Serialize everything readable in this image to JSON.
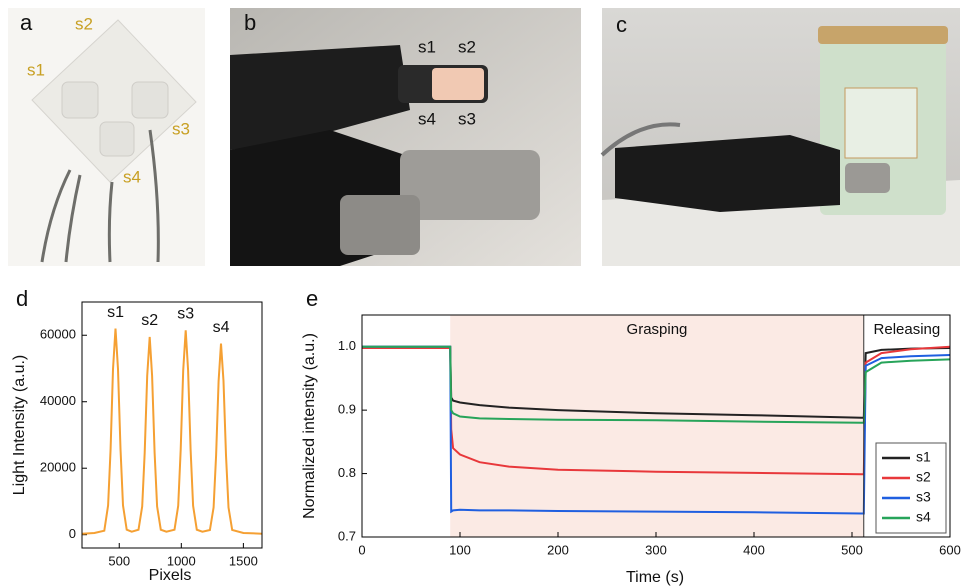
{
  "panels": {
    "a": {
      "label": "a",
      "sensors": [
        "s2",
        "s1",
        "s3",
        "s4"
      ]
    },
    "b": {
      "label": "b",
      "sensors": [
        "s1",
        "s2",
        "s4",
        "s3"
      ]
    },
    "c": {
      "label": "c"
    }
  },
  "chart_data": [
    {
      "type": "line",
      "label": "d",
      "xlabel": "Pixels",
      "ylabel": "Light Intensity (a.u.)",
      "x": [
        200,
        300,
        380,
        410,
        430,
        450,
        470,
        490,
        510,
        530,
        560,
        600,
        655,
        685,
        705,
        725,
        745,
        765,
        785,
        805,
        835,
        880,
        945,
        975,
        995,
        1015,
        1035,
        1055,
        1075,
        1095,
        1125,
        1170,
        1230,
        1260,
        1280,
        1300,
        1320,
        1340,
        1360,
        1380,
        1410,
        1500,
        1650
      ],
      "series": [
        {
          "color": "#f5a033",
          "values": [
            300,
            500,
            1200,
            8800,
            25800,
            49800,
            62000,
            49800,
            25800,
            8800,
            1500,
            900,
            1500,
            8500,
            24700,
            47800,
            59500,
            47800,
            24700,
            8500,
            1500,
            900,
            1500,
            8700,
            25600,
            49400,
            61500,
            49400,
            25600,
            8700,
            1500,
            900,
            1400,
            8200,
            23900,
            46200,
            57500,
            46200,
            23900,
            8200,
            1400,
            500,
            300
          ]
        }
      ],
      "peak_labels": [
        "s1",
        "s2",
        "s3",
        "s4"
      ],
      "xlim": [
        200,
        1650
      ],
      "ylim": [
        -4000,
        70000
      ],
      "xticks": [
        500,
        1000,
        1500
      ],
      "yticks": [
        0,
        20000,
        40000,
        60000
      ]
    },
    {
      "type": "line",
      "label": "e",
      "xlabel": "Time (s)",
      "ylabel": "Normalized intensity (a.u.)",
      "x": [
        0,
        50,
        90,
        91,
        93,
        100,
        120,
        150,
        200,
        300,
        400,
        510,
        512,
        514,
        530,
        560,
        600
      ],
      "spans": [
        {
          "label": "Grasping",
          "x": [
            90,
            512
          ],
          "color": "#fbeae4"
        },
        {
          "label": "Releasing",
          "x": [
            512,
            600
          ],
          "color": "#ffffff"
        }
      ],
      "series": [
        {
          "name": "s1",
          "color": "#222222",
          "values": [
            1.0,
            1.0,
            1.0,
            0.92,
            0.915,
            0.912,
            0.908,
            0.904,
            0.9,
            0.895,
            0.892,
            0.888,
            0.888,
            0.99,
            0.995,
            0.997,
            0.998
          ]
        },
        {
          "name": "s2",
          "color": "#e8383b",
          "values": [
            0.998,
            0.998,
            0.998,
            0.87,
            0.84,
            0.83,
            0.818,
            0.811,
            0.806,
            0.803,
            0.801,
            0.799,
            0.799,
            0.975,
            0.99,
            0.996,
            1.0
          ]
        },
        {
          "name": "s3",
          "color": "#1f5fe0",
          "values": [
            1.0,
            1.0,
            1.0,
            0.74,
            0.742,
            0.743,
            0.742,
            0.742,
            0.741,
            0.74,
            0.739,
            0.737,
            0.737,
            0.97,
            0.982,
            0.985,
            0.987
          ]
        },
        {
          "name": "s4",
          "color": "#27a45a",
          "values": [
            1.0,
            1.0,
            1.0,
            0.9,
            0.895,
            0.89,
            0.887,
            0.886,
            0.885,
            0.884,
            0.882,
            0.88,
            0.88,
            0.96,
            0.975,
            0.978,
            0.98
          ]
        }
      ],
      "legend": "lower right",
      "xlim": [
        0,
        600
      ],
      "ylim": [
        0.7,
        1.05
      ],
      "xticks": [
        0,
        100,
        200,
        300,
        400,
        500,
        600
      ],
      "yticks": [
        0.7,
        0.8,
        0.9,
        {
          "value": 1,
          "label": "1.0"
        }
      ]
    }
  ]
}
